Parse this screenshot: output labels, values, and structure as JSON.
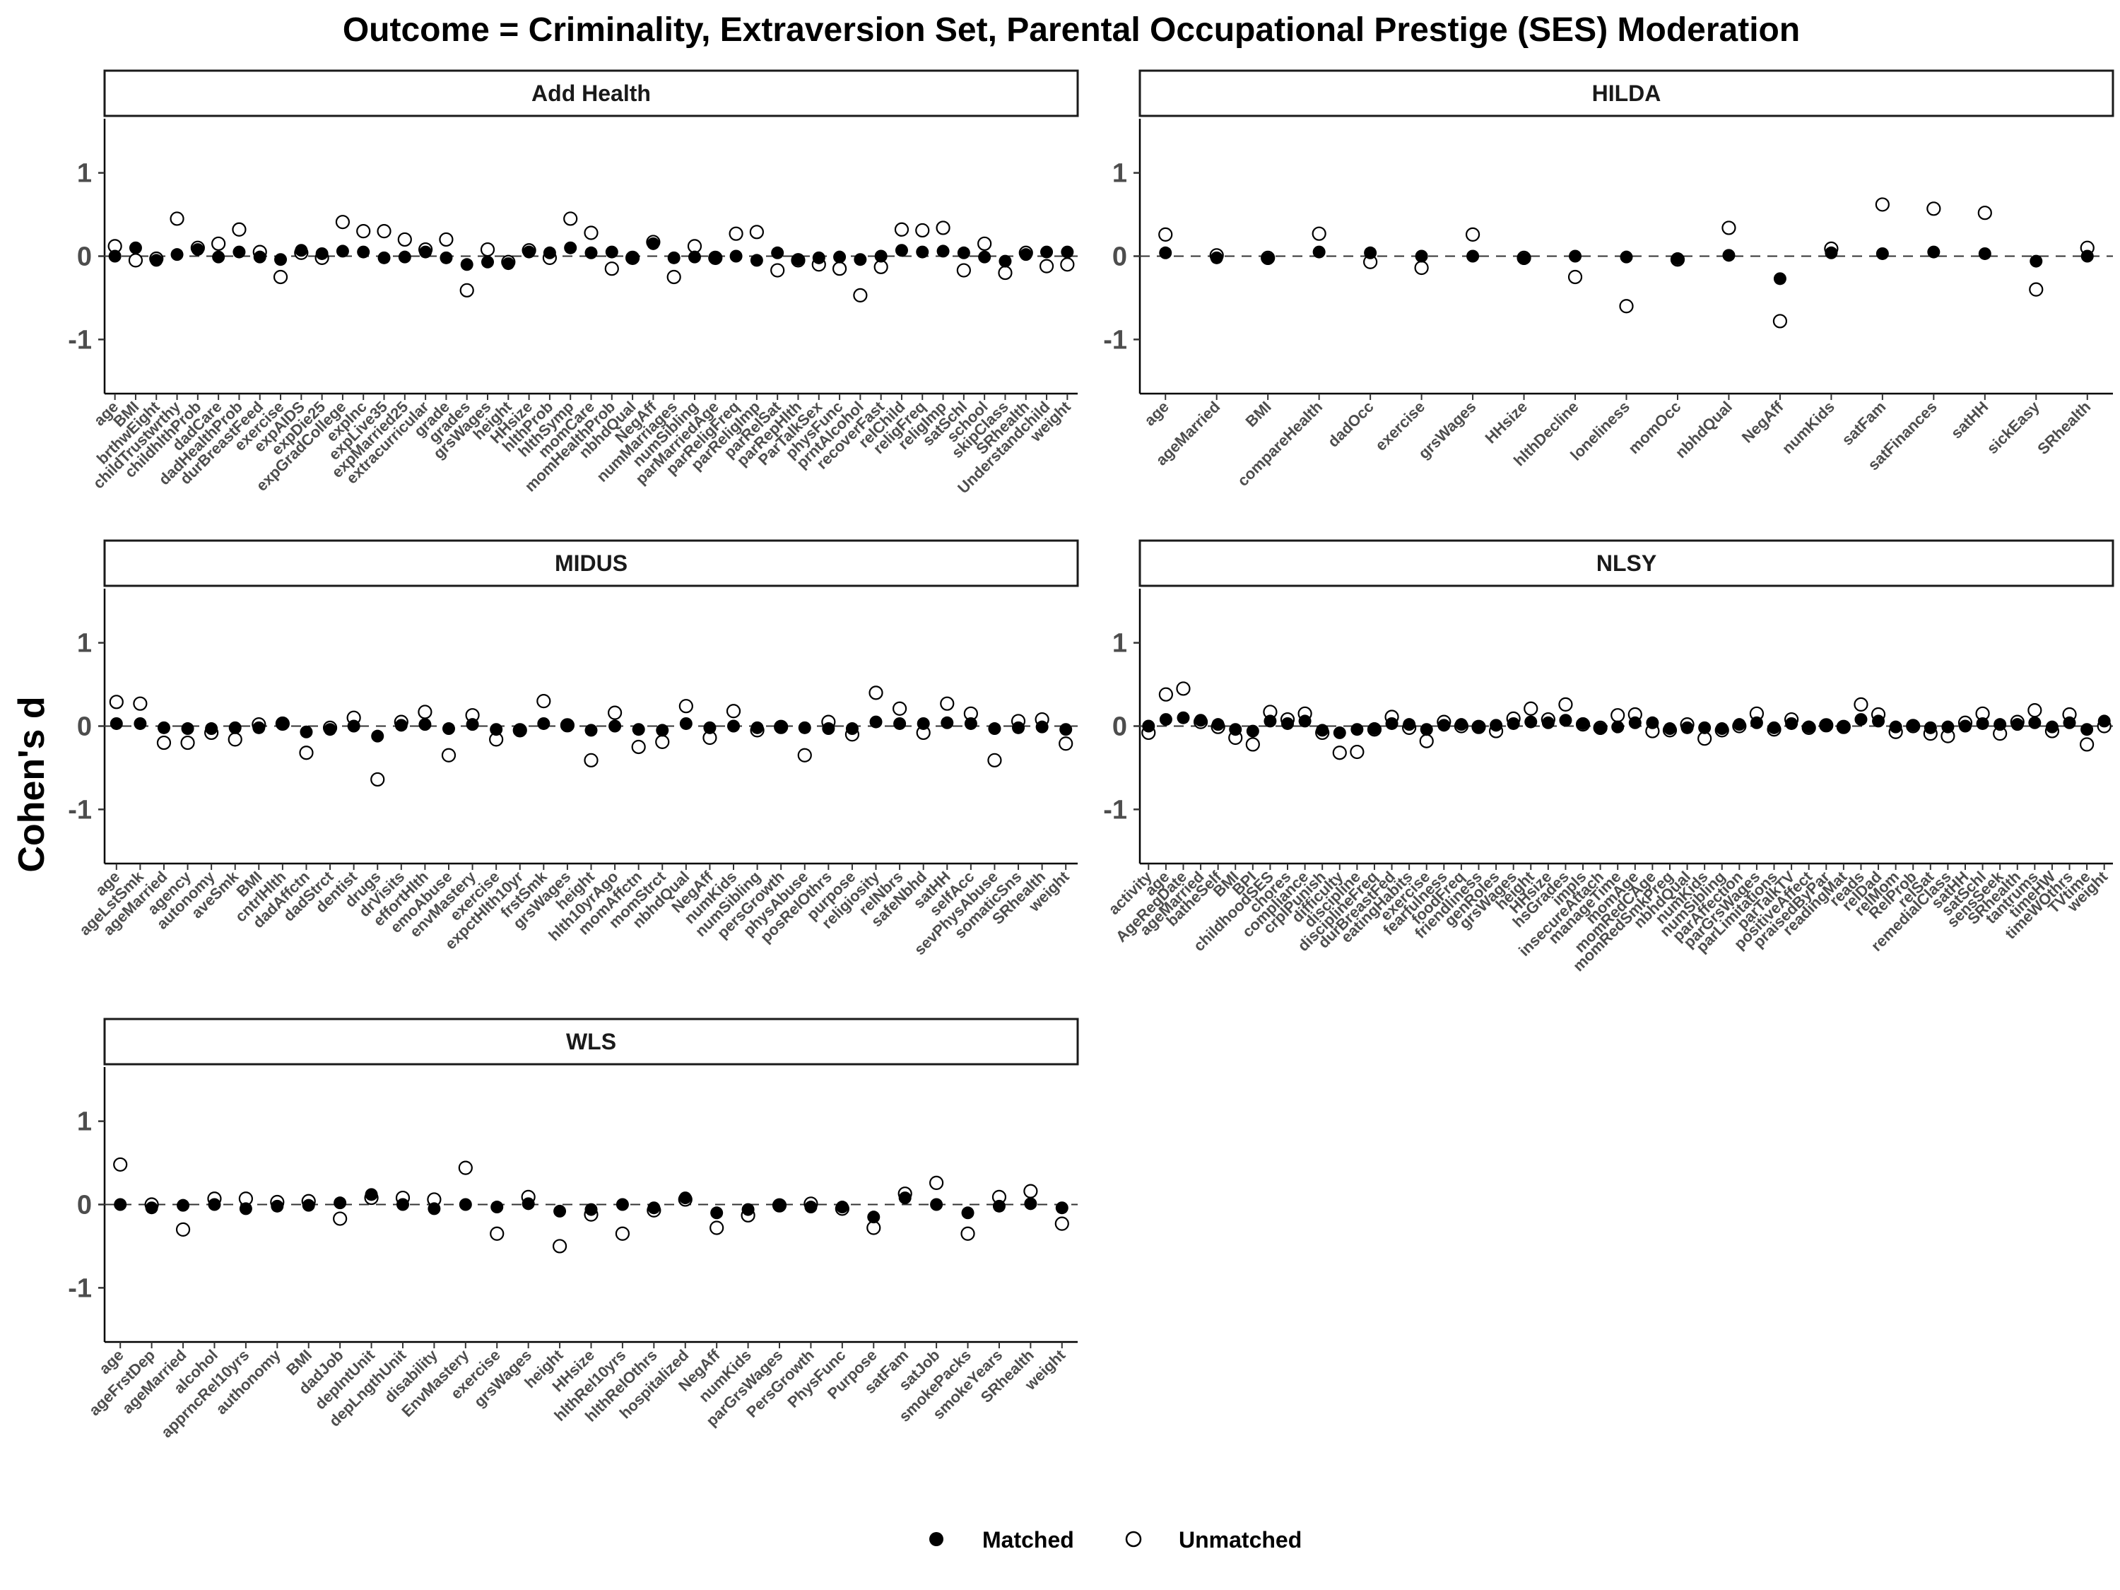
{
  "chart_data": {
    "type": "scatter",
    "title": "Outcome = Criminality, Extraversion Set, Parental Occupational Prestige (SES) Moderation",
    "ylabel": "Cohen's d",
    "ylim": [
      -1.65,
      1.65
    ],
    "yticks": [
      1,
      0,
      -1
    ],
    "reference_line": 0,
    "legend": {
      "position": "bottom",
      "items": [
        {
          "name": "Matched",
          "marker": "filled-circle"
        },
        {
          "name": "Unmatched",
          "marker": "open-circle"
        }
      ]
    },
    "panels": [
      {
        "name": "Add Health",
        "categories": [
          "age",
          "BMI",
          "brthwEight",
          "childTrustwrthy",
          "childhlthProb",
          "dadCare",
          "dadHealthProb",
          "durBreastFeed",
          "exercise",
          "expAIDS",
          "expDie25",
          "expGradCollege",
          "expInc",
          "expLive35",
          "expMarried25",
          "extracurricular",
          "grade",
          "grades",
          "grsWages",
          "height",
          "HHsize",
          "hlthProb",
          "hlthSymp",
          "momCare",
          "momHealthProb",
          "nbhdQual",
          "NegAff",
          "numMarriages",
          "numSibling",
          "parMarriedAge",
          "parReligFreq",
          "parReligImp",
          "parRelSat",
          "parRepHlth",
          "ParTalkSex",
          "physFunc",
          "prntAlcohol",
          "recoverFast",
          "relChild",
          "religFreq",
          "religImp",
          "satSchl",
          "school",
          "skipClass",
          "SRhealth",
          "Understandchild",
          "weight"
        ],
        "matched": [
          0.0,
          0.1,
          -0.05,
          0.02,
          0.08,
          -0.01,
          0.05,
          -0.01,
          -0.04,
          0.07,
          0.03,
          0.06,
          0.05,
          -0.02,
          -0.01,
          0.05,
          -0.02,
          -0.1,
          -0.07,
          -0.09,
          0.05,
          0.04,
          0.1,
          0.04,
          0.05,
          -0.02,
          0.15,
          -0.02,
          -0.01,
          -0.02,
          0.0,
          -0.05,
          0.04,
          -0.04,
          -0.02,
          -0.01,
          -0.04,
          0.0,
          0.07,
          0.05,
          0.06,
          0.04,
          -0.01,
          -0.06,
          0.02,
          0.05,
          0.05
        ],
        "unmatched": [
          0.12,
          -0.05,
          -0.03,
          0.45,
          0.1,
          0.15,
          0.32,
          0.05,
          -0.25,
          0.04,
          -0.02,
          0.41,
          0.3,
          0.3,
          0.2,
          0.08,
          0.2,
          -0.41,
          0.08,
          -0.07,
          0.07,
          -0.02,
          0.45,
          0.28,
          -0.15,
          -0.02,
          0.17,
          -0.25,
          0.12,
          -0.02,
          0.27,
          0.29,
          -0.17,
          -0.05,
          -0.1,
          -0.15,
          -0.47,
          -0.13,
          0.32,
          0.31,
          0.34,
          -0.17,
          0.15,
          -0.2,
          0.04,
          -0.12,
          -0.1
        ]
      },
      {
        "name": "HILDA",
        "categories": [
          "age",
          "ageMarried",
          "BMI",
          "compareHealth",
          "dadOcc",
          "exercise",
          "grsWages",
          "HHsize",
          "hlthDecline",
          "loneliness",
          "momOcc",
          "nbhdQual",
          "NegAff",
          "numKids",
          "satFam",
          "satFinances",
          "satHH",
          "sickEasy",
          "SRhealth"
        ],
        "matched": [
          0.04,
          -0.02,
          -0.03,
          0.05,
          0.04,
          0.0,
          0.0,
          -0.03,
          0.0,
          -0.01,
          -0.03,
          0.01,
          -0.27,
          0.04,
          0.03,
          0.05,
          0.03,
          -0.06,
          0.0
        ],
        "unmatched": [
          0.26,
          0.01,
          -0.02,
          0.27,
          -0.07,
          -0.14,
          0.26,
          -0.02,
          -0.25,
          -0.6,
          -0.04,
          0.34,
          -0.78,
          0.09,
          0.62,
          0.57,
          0.52,
          -0.4,
          0.1
        ]
      },
      {
        "name": "MIDUS",
        "categories": [
          "age",
          "ageLstSmk",
          "ageMarried",
          "agency",
          "autonomy",
          "aveSmk",
          "BMI",
          "cntrlHlth",
          "dadAffctn",
          "dadStrct",
          "dentist",
          "drugs",
          "drVisits",
          "effortHlth",
          "emoAbuse",
          "envMastery",
          "exercise",
          "expctHlth10yr",
          "frstSmk",
          "grsWages",
          "height",
          "hlth10yrAgo",
          "momAffctn",
          "momStrct",
          "nbhdQual",
          "NegAff",
          "numKids",
          "numSibling",
          "persGrowth",
          "physAbuse",
          "posRelOthrs",
          "purpose",
          "religiosity",
          "relNbrs",
          "safeNbhd",
          "satHH",
          "selfAcc",
          "sevPhysAbuse",
          "somaticSns",
          "SRhealth",
          "weight"
        ],
        "matched": [
          0.03,
          0.03,
          -0.02,
          -0.03,
          -0.03,
          -0.02,
          -0.02,
          0.03,
          -0.07,
          -0.04,
          0.0,
          -0.12,
          0.01,
          0.02,
          -0.03,
          0.02,
          -0.04,
          -0.05,
          0.03,
          0.01,
          -0.05,
          0.0,
          -0.04,
          -0.05,
          0.03,
          -0.02,
          0.0,
          -0.02,
          -0.01,
          -0.02,
          -0.03,
          -0.03,
          0.05,
          0.03,
          0.03,
          0.04,
          0.03,
          -0.03,
          -0.02,
          -0.01,
          -0.04
        ],
        "unmatched": [
          0.29,
          0.27,
          -0.2,
          -0.2,
          -0.08,
          -0.16,
          0.02,
          0.03,
          -0.32,
          -0.02,
          0.1,
          -0.64,
          0.05,
          0.17,
          -0.35,
          0.13,
          -0.16,
          -0.05,
          0.3,
          0.01,
          -0.41,
          0.16,
          -0.25,
          -0.19,
          0.24,
          -0.14,
          0.18,
          -0.05,
          -0.01,
          -0.35,
          0.05,
          -0.1,
          0.4,
          0.21,
          -0.08,
          0.27,
          0.15,
          -0.41,
          0.06,
          0.08,
          -0.21
        ]
      },
      {
        "name": "NLSY",
        "categories": [
          "activity",
          "age",
          "AgeRegDate",
          "ageMarried",
          "batheSelf",
          "BMI",
          "BPI",
          "childhoodSES",
          "chores",
          "compliance",
          "crplPunish",
          "difficulty",
          "discipline",
          "disciplineFreq",
          "durBreastFed",
          "eatingHabits",
          "exercise",
          "fearfulness",
          "foodFreq",
          "friendliness",
          "genRoles",
          "grsWages",
          "height",
          "HHsize",
          "hsGrades",
          "impls",
          "insecureAttach",
          "manageTime",
          "momAge",
          "momRedCAge",
          "momRedSmkPreg",
          "nbhdQual",
          "numKids",
          "numSibling",
          "parAffection",
          "parGrsWages",
          "parLimitations",
          "parTalkTV",
          "positiveAffect",
          "praisedByPar",
          "readingMat",
          "reads",
          "relDad",
          "relMom",
          "RelProb",
          "relSat",
          "remedialClass",
          "satHH",
          "satSchl",
          "sensSeek",
          "SRhealth",
          "tantrums",
          "timeHW",
          "timeWOthrs",
          "TVtime",
          "weight"
        ],
        "matched": [
          0.0,
          0.08,
          0.1,
          0.07,
          0.02,
          -0.04,
          -0.06,
          0.06,
          0.03,
          0.06,
          -0.05,
          -0.08,
          -0.04,
          -0.03,
          0.03,
          0.02,
          -0.04,
          0.01,
          0.02,
          -0.01,
          0.01,
          0.03,
          0.05,
          0.04,
          0.07,
          0.03,
          -0.03,
          -0.01,
          0.04,
          0.04,
          -0.03,
          -0.02,
          -0.02,
          -0.03,
          0.02,
          0.04,
          -0.02,
          0.03,
          -0.01,
          0.01,
          -0.01,
          0.08,
          0.06,
          -0.01,
          0.01,
          -0.02,
          -0.01,
          0.0,
          0.03,
          0.02,
          0.02,
          0.04,
          -0.01,
          0.04,
          -0.04,
          0.06
        ],
        "unmatched": [
          -0.08,
          0.38,
          0.45,
          0.05,
          -0.01,
          -0.14,
          -0.22,
          0.17,
          0.08,
          0.15,
          -0.08,
          -0.32,
          -0.31,
          -0.04,
          0.11,
          -0.02,
          -0.18,
          0.05,
          0.0,
          -0.01,
          -0.06,
          0.09,
          0.21,
          0.08,
          0.26,
          0.02,
          -0.02,
          0.13,
          0.14,
          -0.06,
          -0.05,
          0.02,
          -0.15,
          -0.05,
          0.0,
          0.15,
          -0.04,
          0.08,
          -0.02,
          0.01,
          -0.01,
          0.26,
          0.14,
          -0.07,
          0.0,
          -0.09,
          -0.12,
          0.04,
          0.15,
          -0.09,
          0.05,
          0.19,
          -0.06,
          0.14,
          -0.22,
          0.0
        ]
      },
      {
        "name": "WLS",
        "categories": [
          "age",
          "ageFrstDep",
          "ageMarried",
          "alcohol",
          "apprncRel10yrs",
          "authonomy",
          "BMI",
          "dadJob",
          "depIntUnit",
          "depLngthUnit",
          "disability",
          "EnvMastery",
          "exercise",
          "grsWages",
          "height",
          "HHsize",
          "hlthRel10yrs",
          "hlthRelOthrs",
          "hospitalized",
          "NegAff",
          "numKids",
          "parGrsWages",
          "PersGrowth",
          "PhysFunc",
          "Purpose",
          "satFam",
          "satJob",
          "smokePacks",
          "smokeYears",
          "SRhealth",
          "weight"
        ],
        "matched": [
          0.0,
          -0.04,
          -0.01,
          0.0,
          -0.05,
          -0.02,
          -0.01,
          0.02,
          0.12,
          0.0,
          -0.05,
          0.0,
          -0.03,
          0.01,
          -0.08,
          -0.06,
          0.0,
          -0.04,
          0.08,
          -0.1,
          -0.06,
          -0.01,
          -0.03,
          -0.03,
          -0.15,
          0.08,
          0.0,
          -0.1,
          -0.02,
          0.01,
          -0.04
        ],
        "unmatched": [
          0.48,
          0.0,
          -0.3,
          0.07,
          0.07,
          0.03,
          0.04,
          -0.17,
          0.08,
          0.08,
          0.06,
          0.44,
          -0.35,
          0.09,
          -0.5,
          -0.12,
          -0.35,
          -0.07,
          0.06,
          -0.28,
          -0.13,
          -0.01,
          0.01,
          -0.05,
          -0.28,
          0.13,
          0.26,
          -0.35,
          0.09,
          0.16,
          -0.23
        ]
      }
    ]
  }
}
